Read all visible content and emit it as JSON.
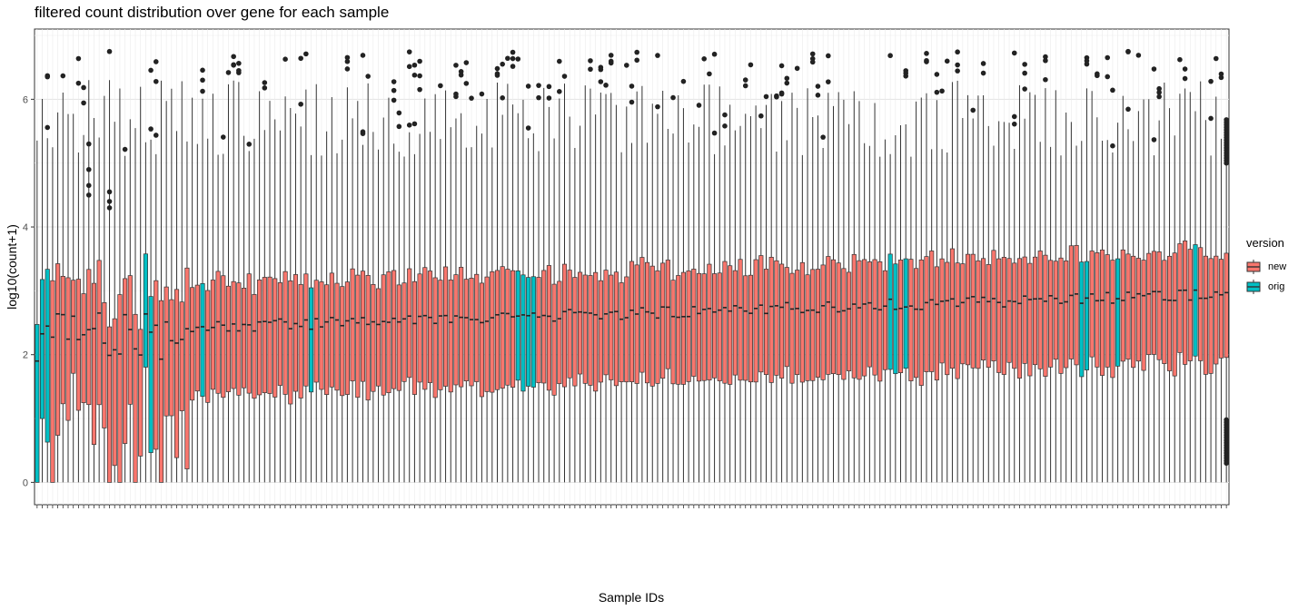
{
  "chart_data": {
    "type": "boxplot",
    "title": "filtered count distribution over gene for each sample",
    "xlabel": "Sample IDs",
    "ylabel": "log10(count+1)",
    "ylim": [
      -0.35,
      7.1
    ],
    "yticks": [
      0,
      2,
      4,
      6
    ],
    "grid": true,
    "legend": {
      "title": "version",
      "position": "right",
      "entries": [
        {
          "name": "new",
          "color": "#F8766D"
        },
        {
          "name": "orig",
          "color": "#00BFC4"
        }
      ]
    },
    "n_samples": 231,
    "orig_sample_indices": [
      0,
      1,
      2,
      21,
      22,
      32,
      53,
      93,
      94,
      95,
      96,
      165,
      166,
      168,
      202,
      203,
      209,
      224
    ],
    "sample_ids_note": "tick labels overlap and are illegible in the source",
    "approx_stats": {
      "median_range": [
        1.8,
        3.0
      ],
      "q1_range": [
        0.0,
        1.9
      ],
      "q3_range": [
        2.4,
        3.6
      ],
      "upper_whisker_range": [
        5.1,
        6.6
      ],
      "lower_whisker": 0,
      "max_outlier": 6.75
    }
  }
}
